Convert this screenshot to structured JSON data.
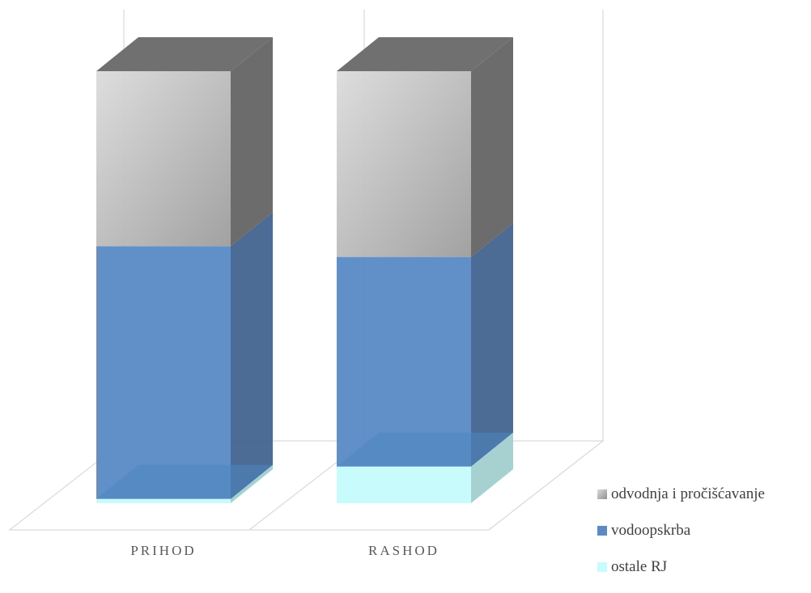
{
  "chart_data": {
    "type": "bar",
    "stacked": true,
    "three_d": true,
    "percent_stacked": true,
    "categories": [
      "PRIHOD",
      "RASHOD"
    ],
    "series": [
      {
        "name": "ostale RJ",
        "values": [
          1,
          8.5
        ],
        "color": "#c6fcfc"
      },
      {
        "name": "vodoopskrba",
        "values": [
          58.5,
          48.5
        ],
        "color": "#5b8ac6"
      },
      {
        "name": "odvodnja i pročišćavanje",
        "values": [
          40.5,
          43
        ],
        "color": "#b5b5b5"
      }
    ],
    "ylim": [
      0,
      100
    ],
    "legend_position": "right-bottom",
    "legend_order": [
      "odvodnja i pročišćavanje",
      "vodoopskrba",
      "ostale RJ"
    ],
    "grid": false
  }
}
